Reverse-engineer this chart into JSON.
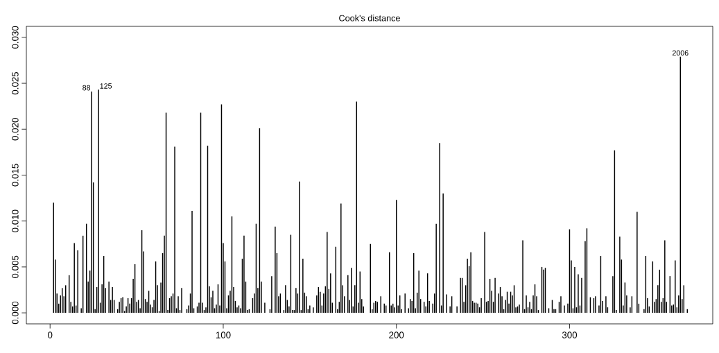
{
  "chart_data": {
    "type": "bar",
    "title": "Cook's distance",
    "color": "#000000",
    "x": [
      2,
      3,
      4,
      5,
      6,
      7,
      8,
      9,
      11,
      12,
      13,
      14,
      15,
      16,
      18,
      19,
      21,
      22,
      23,
      24,
      25,
      26,
      27,
      28,
      29,
      30,
      31,
      32,
      34,
      35,
      36,
      37,
      39,
      40,
      41,
      42,
      43,
      44,
      45,
      46,
      47,
      48,
      49,
      50,
      51,
      52,
      53,
      54,
      55,
      56,
      57,
      58,
      59,
      60,
      61,
      62,
      63,
      64,
      65,
      66,
      67,
      68,
      69,
      70,
      71,
      72,
      73,
      74,
      75,
      76,
      79,
      80,
      81,
      82,
      83,
      85,
      86,
      87,
      88,
      89,
      90,
      91,
      92,
      93,
      94,
      95,
      96,
      97,
      98,
      99,
      100,
      101,
      102,
      103,
      104,
      105,
      106,
      107,
      108,
      109,
      110,
      111,
      112,
      113,
      114,
      115,
      117,
      118,
      119,
      120,
      121,
      122,
      124,
      127,
      128,
      130,
      131,
      132,
      133,
      135,
      136,
      137,
      138,
      139,
      140,
      141,
      142,
      143,
      144,
      145,
      146,
      147,
      148,
      149,
      150,
      152,
      154,
      155,
      156,
      157,
      158,
      159,
      160,
      161,
      162,
      163,
      165,
      166,
      167,
      168,
      169,
      170,
      172,
      173,
      174,
      175,
      176,
      177,
      178,
      179,
      180,
      181,
      185,
      186,
      187,
      188,
      189,
      191,
      193,
      194,
      196,
      197,
      198,
      199,
      200,
      201,
      202,
      203,
      205,
      207,
      208,
      209,
      210,
      211,
      212,
      213,
      214,
      216,
      217,
      218,
      219,
      221,
      222,
      223,
      225,
      226,
      227,
      229,
      231,
      232,
      235,
      237,
      238,
      239,
      240,
      241,
      242,
      243,
      244,
      245,
      246,
      247,
      248,
      249,
      251,
      252,
      253,
      254,
      255,
      256,
      257,
      259,
      260,
      261,
      262,
      263,
      264,
      265,
      266,
      267,
      268,
      269,
      270,
      271,
      273,
      274,
      275,
      276,
      277,
      278,
      279,
      280,
      281,
      282,
      284,
      285,
      286,
      288,
      290,
      291,
      292,
      294,
      295,
      297,
      299,
      300,
      301,
      302,
      303,
      304,
      305,
      306,
      307,
      309,
      310,
      312,
      314,
      315,
      317,
      318,
      319,
      321,
      322,
      325,
      326,
      327,
      329,
      330,
      331,
      332,
      333,
      335,
      336,
      339,
      340,
      343,
      344,
      345,
      346,
      348,
      349,
      350,
      351,
      352,
      353,
      354,
      355,
      356,
      358,
      359,
      360,
      361,
      362,
      363,
      364,
      365,
      366,
      368
    ],
    "values": [
      0.012,
      0.0058,
      0.0021,
      0.001,
      0.0019,
      0.0027,
      0.0018,
      0.003,
      0.0041,
      0.0012,
      0.0007,
      0.0076,
      0.0008,
      0.0068,
      0.0005,
      0.0084,
      0.0097,
      0.0034,
      0.0046,
      0.0241,
      0.0142,
      0.0004,
      0.0028,
      0.0243,
      0.0011,
      0.0031,
      0.0062,
      0.0027,
      0.0034,
      0.0014,
      0.0028,
      0.0014,
      0.0004,
      0.0012,
      0.0016,
      0.0017,
      0.0002,
      0.0007,
      0.0016,
      0.001,
      0.0016,
      0.0037,
      0.0053,
      0.0012,
      0.0014,
      0.0005,
      0.009,
      0.0067,
      0.0015,
      0.0012,
      0.0024,
      0.0009,
      0.0006,
      0.0014,
      0.0056,
      0.003,
      0.0002,
      0.0033,
      0.0065,
      0.0084,
      0.0218,
      0.0003,
      0.0016,
      0.0018,
      0.0021,
      0.0181,
      0.0005,
      0.0018,
      0.0003,
      0.0027,
      0.0004,
      0.0008,
      0.0021,
      0.0111,
      0.0005,
      0.0007,
      0.0011,
      0.0218,
      0.0011,
      0.0003,
      0.0006,
      0.0182,
      0.0029,
      0.0017,
      0.0024,
      0.0005,
      0.0009,
      0.0031,
      0.0008,
      0.0227,
      0.0076,
      0.0056,
      0.0005,
      0.0019,
      0.0024,
      0.0105,
      0.0028,
      0.0013,
      0.0006,
      0.0008,
      0.0005,
      0.0059,
      0.0084,
      0.0034,
      0.0003,
      0.0004,
      0.0016,
      0.0021,
      0.0097,
      0.0027,
      0.0201,
      0.0034,
      0.0011,
      0.0004,
      0.004,
      0.0094,
      0.0065,
      0.0018,
      0.0021,
      0.0003,
      0.003,
      0.0014,
      0.0007,
      0.0085,
      0.0003,
      0.0003,
      0.0027,
      0.0021,
      0.0143,
      0.0003,
      0.0059,
      0.0022,
      0.0018,
      0.0004,
      0.0008,
      0.0006,
      0.0019,
      0.0028,
      0.0023,
      0.0008,
      0.0021,
      0.0029,
      0.0088,
      0.0026,
      0.0043,
      0.0011,
      0.0072,
      0.0004,
      0.0012,
      0.0119,
      0.003,
      0.0018,
      0.0041,
      0.0014,
      0.0049,
      0.0007,
      0.003,
      0.023,
      0.0011,
      0.0045,
      0.0015,
      0.0007,
      0.0075,
      0.0004,
      0.0011,
      0.0013,
      0.0012,
      0.0018,
      0.001,
      0.0008,
      0.0066,
      0.0008,
      0.001,
      0.0006,
      0.0123,
      0.0008,
      0.0019,
      0.0004,
      0.0021,
      0.0005,
      0.0015,
      0.0013,
      0.0065,
      0.0005,
      0.0022,
      0.0046,
      0.0015,
      0.0012,
      0.0007,
      0.0043,
      0.0013,
      0.001,
      0.0021,
      0.0097,
      0.0185,
      0.0008,
      0.013,
      0.002,
      0.0007,
      0.0018,
      0.0007,
      0.0038,
      0.0038,
      0.0012,
      0.003,
      0.0059,
      0.0051,
      0.0066,
      0.0013,
      0.0011,
      0.0011,
      0.001,
      0.0006,
      0.0016,
      0.0088,
      0.0012,
      0.0013,
      0.0037,
      0.0024,
      0.0012,
      0.0038,
      0.0021,
      0.0028,
      0.0018,
      0.0004,
      0.0014,
      0.0023,
      0.001,
      0.0023,
      0.0019,
      0.003,
      0.0006,
      0.0007,
      0.0009,
      0.0079,
      0.0004,
      0.0019,
      0.0006,
      0.0012,
      0.0004,
      0.0019,
      0.0031,
      0.0018,
      0.0003,
      0.005,
      0.0047,
      0.0049,
      0.0005,
      0.0014,
      0.0004,
      0.0004,
      0.0012,
      0.0018,
      0.0008,
      0.001,
      0.0091,
      0.0057,
      0.0005,
      0.005,
      0.0006,
      0.0042,
      0.0008,
      0.0038,
      0.0078,
      0.0092,
      0.0017,
      0.0016,
      0.0018,
      0.0008,
      0.0062,
      0.0013,
      0.0018,
      0.0006,
      0.004,
      0.0177,
      0.0003,
      0.0083,
      0.0058,
      0.0008,
      0.0033,
      0.0019,
      0.0006,
      0.0018,
      0.011,
      0.001,
      0.0004,
      0.0062,
      0.0016,
      0.0007,
      0.0056,
      0.0012,
      0.0015,
      0.003,
      0.0047,
      0.0012,
      0.0016,
      0.0079,
      0.0012,
      0.004,
      0.0008,
      0.0009,
      0.0057,
      0.0006,
      0.0019,
      0.0279,
      0.0015,
      0.003,
      0.0004
    ],
    "xlim": [
      -13.7,
      382.7
    ],
    "ylim": [
      -0.0012,
      0.0312
    ],
    "xticks": [
      0,
      100,
      200,
      300
    ],
    "yticks": [
      {
        "value": 0,
        "label": "0.000"
      },
      {
        "value": 0.005,
        "label": "0.005"
      },
      {
        "value": 0.01,
        "label": "0.010"
      },
      {
        "value": 0.015,
        "label": "0.015"
      },
      {
        "value": 0.02,
        "label": "0.020"
      },
      {
        "value": 0.025,
        "label": "0.025"
      },
      {
        "value": 0.03,
        "label": "0.030"
      }
    ],
    "annotations": [
      {
        "text": "88",
        "x": 24,
        "y": 0.0241
      },
      {
        "text": "125",
        "x": 28,
        "y": 0.0243
      },
      {
        "text": "2006",
        "x": 364,
        "y": 0.0279
      }
    ]
  }
}
